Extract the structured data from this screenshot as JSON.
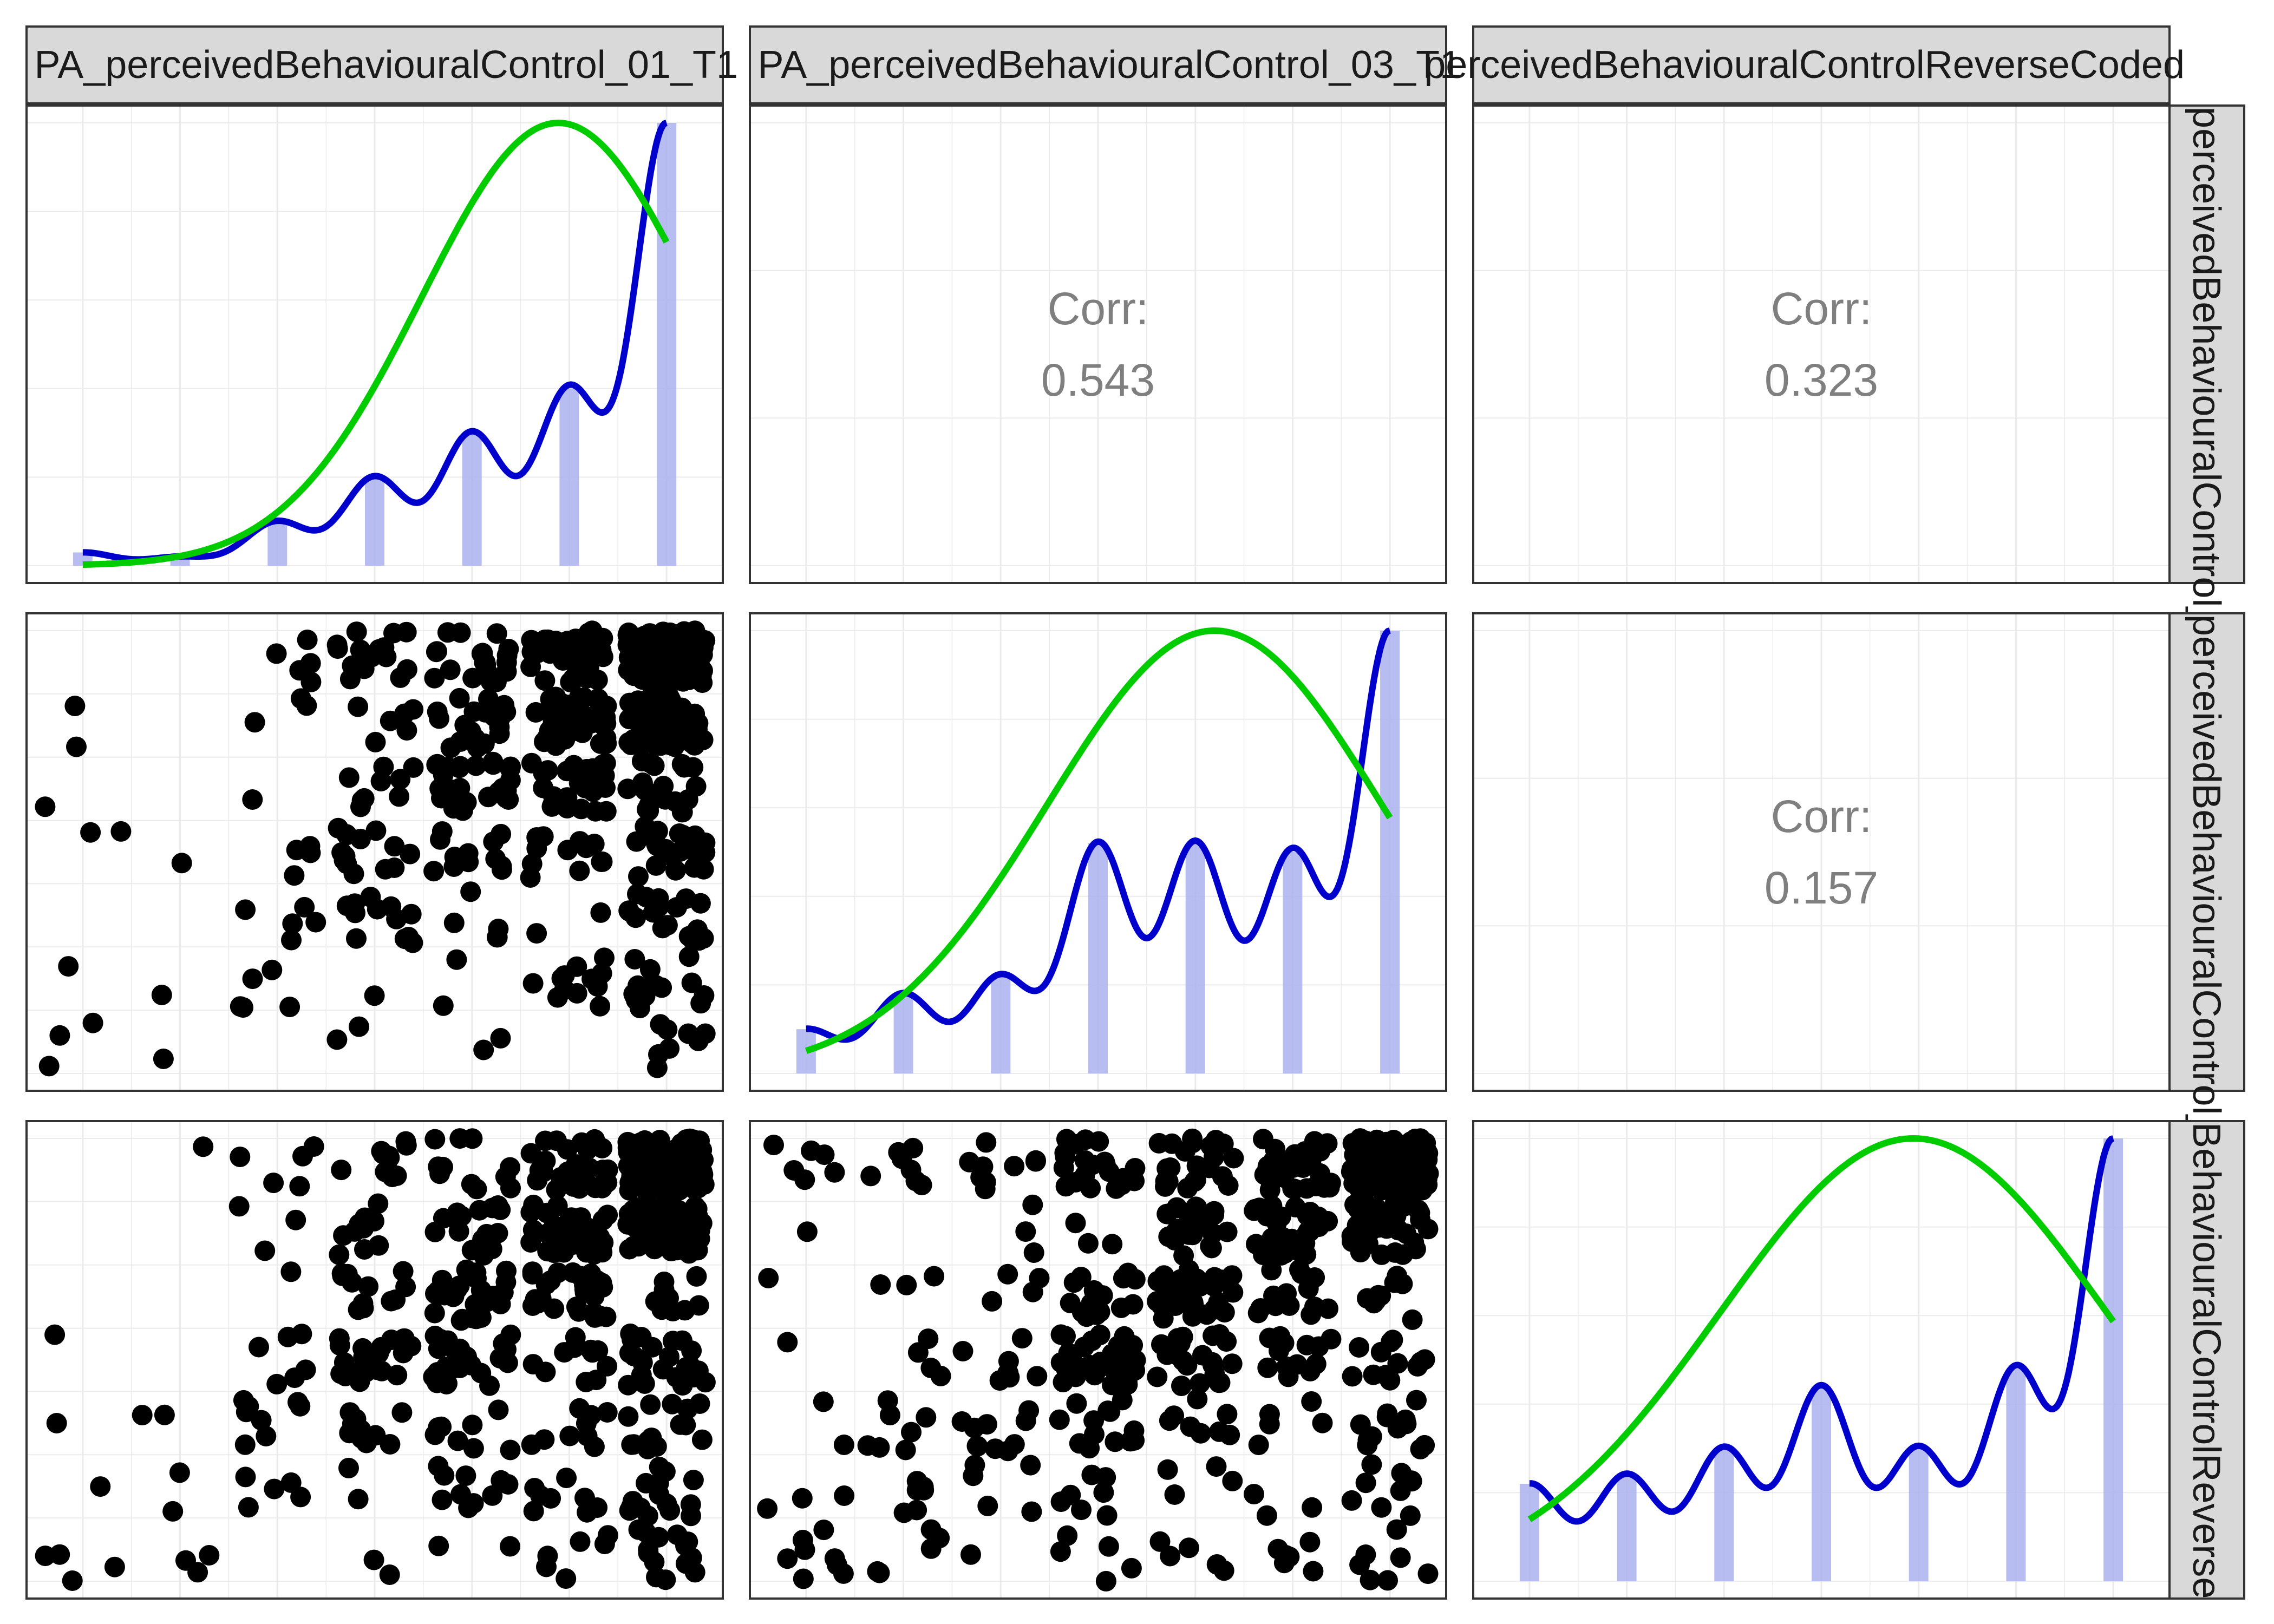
{
  "chart_data": {
    "type": "scatter",
    "variables": [
      "PA_perceivedBehaviouralControl_01_T1",
      "PA_perceivedBehaviouralControl_03_T1",
      "PA_perceivedBehaviouralControlReverseCoded"
    ],
    "column_strips": [
      "PA_perceivedBehaviouralControl_01_T1",
      "PA_perceivedBehaviouralControl_03_T1",
      "perceivedBehaviouralControlReverseCoded"
    ],
    "row_strips": [
      "perceivedBehaviouralControl_",
      "perceivedBehaviouralControl_",
      "BehaviouralControlReverse"
    ],
    "correlations": [
      {
        "row": 1,
        "col": 2,
        "label": "Corr:",
        "value": "0.543"
      },
      {
        "row": 1,
        "col": 3,
        "label": "Corr:",
        "value": "0.323"
      },
      {
        "row": 2,
        "col": 3,
        "label": "Corr:",
        "value": "0.157"
      }
    ],
    "diagonal_histograms": [
      {
        "variable": 1,
        "categories": [
          1,
          2,
          3,
          4,
          5,
          6,
          7
        ],
        "counts": [
          3,
          2,
          10,
          20,
          30,
          40,
          100
        ]
      },
      {
        "variable": 2,
        "categories": [
          1,
          2,
          3,
          4,
          5,
          6,
          7
        ],
        "counts": [
          10,
          18,
          22,
          52,
          52,
          50,
          100
        ]
      },
      {
        "variable": 3,
        "categories": [
          1,
          2,
          3,
          4,
          5,
          6,
          7
        ],
        "counts": [
          22,
          24,
          30,
          44,
          30,
          48,
          100
        ]
      }
    ],
    "scatter_panels": [
      {
        "row": 2,
        "col": 1,
        "x": 1,
        "y": 2
      },
      {
        "row": 3,
        "col": 1,
        "x": 1,
        "y": 3
      },
      {
        "row": 3,
        "col": 2,
        "x": 2,
        "y": 3
      }
    ],
    "xlim": [
      0.6,
      7.4
    ],
    "ylim": [
      0.6,
      7.4
    ],
    "grid": true,
    "legend": "none",
    "colors": {
      "density": "#0000cc",
      "normal_curve": "#00cc00",
      "histogram": "#aab0ee",
      "points": "#000000",
      "grid": "#ebebeb",
      "strip_fill": "#d9d9d9",
      "corr_text": "#7f7f7f"
    }
  }
}
